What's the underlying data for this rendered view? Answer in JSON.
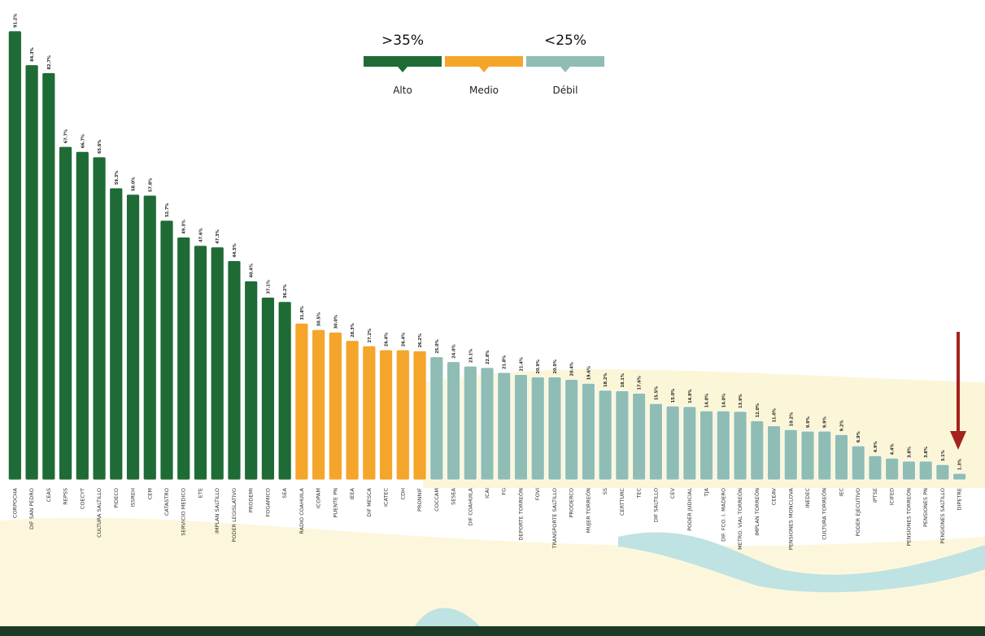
{
  "chart_data": {
    "type": "bar",
    "categories": [
      "CORPOCHA",
      "DIF SAN PEDRO",
      "CEAS",
      "REPSS",
      "COECYT",
      "CULTURA SALTILLO",
      "PIDECO",
      "ISSREH",
      "CEM",
      "CATASTRO",
      "SERVICIO MEDICO",
      "ETE",
      "IMPLAN SALTILLO",
      "PODER LEGISLATIVO",
      "PRODEMI",
      "FOGAMICO",
      "SEA",
      "RADIO COAHUILA",
      "ICOPAM",
      "PUENTE PN",
      "IEEA",
      "DIF MESCA",
      "ICATEC",
      "CDH",
      "PRONNIF",
      "COCCAM",
      "SESEA",
      "DIF COAHUILA",
      "ICAI",
      "FG",
      "DEPORTE TORREÓN",
      "FOVI",
      "TRANSPORTE SALTILLO",
      "PRODERCO",
      "MUJER TORREÓN",
      "SS",
      "CERTTURC",
      "TEC",
      "DIF SALTILLO",
      "CEV",
      "PODER JUDICIAL",
      "TJA",
      "DIF. FCO. I. MADERO",
      "METRO. VIAL TORREÓN",
      "IMPLAN TORREÓN",
      "CEEAV",
      "PENSIONES MONCLOVA",
      "INEDEC",
      "CULTURA TORREÓN",
      "IEC",
      "PODER EJECUTIVO",
      "IPTSE",
      "ICIFED",
      "PENSIONES TORREÓN",
      "PENSIONES PN",
      "PENSIONES SALTILLO",
      "DIPETRE"
    ],
    "values": [
      91.2,
      84.3,
      82.7,
      67.7,
      66.7,
      65.6,
      59.3,
      58.0,
      57.8,
      52.7,
      49.3,
      47.6,
      47.3,
      44.5,
      40.4,
      37.1,
      36.2,
      31.8,
      30.5,
      30.0,
      28.3,
      27.2,
      26.4,
      26.4,
      26.2,
      25.0,
      24.0,
      23.1,
      22.8,
      21.8,
      21.4,
      20.9,
      20.9,
      20.4,
      19.6,
      18.2,
      18.1,
      17.6,
      15.5,
      15.0,
      14.9,
      14.0,
      14.0,
      13.9,
      12.0,
      11.0,
      10.2,
      9.9,
      9.9,
      9.2,
      6.9,
      4.9,
      4.4,
      3.8,
      3.8,
      3.1,
      1.3
    ],
    "value_labels": [
      "91.2%",
      "84.3%",
      "82.7%",
      "67.7%",
      "66.7%",
      "65.6%",
      "59.3%",
      "58.0%",
      "57.8%",
      "52.7%",
      "49.3%",
      "47.6%",
      "47.3%",
      "44.5%",
      "40.4%",
      "37.1%",
      "36.2%",
      "31.8%",
      "30.5%",
      "30.0%",
      "28.3%",
      "27.2%",
      "26.4%",
      "26.4%",
      "26.2%",
      "25.0%",
      "24.0%",
      "23.1%",
      "22.8%",
      "21.8%",
      "21.4%",
      "20.9%",
      "20.9%",
      "20.4%",
      "19.6%",
      "18.2%",
      "18.1%",
      "17.6%",
      "15.5%",
      "15.0%",
      "14.9%",
      "14.0%",
      "14.0%",
      "13.9%",
      "12.0%",
      "11.0%",
      "10.2%",
      "9.9%",
      "9.9%",
      "9.2%",
      "6.9%",
      "4.9%",
      "4.4%",
      "3.8%",
      "3.8%",
      "3.1%",
      "1.3%"
    ],
    "colors": [
      "#1f6b35",
      "#1f6b35",
      "#1f6b35",
      "#1f6b35",
      "#1f6b35",
      "#1f6b35",
      "#1f6b35",
      "#1f6b35",
      "#1f6b35",
      "#1f6b35",
      "#1f6b35",
      "#1f6b35",
      "#1f6b35",
      "#1f6b35",
      "#1f6b35",
      "#1f6b35",
      "#1f6b35",
      "#f5a52a",
      "#f5a52a",
      "#f5a52a",
      "#f5a52a",
      "#f5a52a",
      "#f5a52a",
      "#f5a52a",
      "#f5a52a",
      "#8fbdb5",
      "#8fbdb5",
      "#8fbdb5",
      "#8fbdb5",
      "#8fbdb5",
      "#8fbdb5",
      "#8fbdb5",
      "#8fbdb5",
      "#8fbdb5",
      "#8fbdb5",
      "#8fbdb5",
      "#8fbdb5",
      "#8fbdb5",
      "#8fbdb5",
      "#8fbdb5",
      "#8fbdb5",
      "#8fbdb5",
      "#8fbdb5",
      "#8fbdb5",
      "#8fbdb5",
      "#8fbdb5",
      "#8fbdb5",
      "#8fbdb5",
      "#8fbdb5",
      "#8fbdb5",
      "#8fbdb5",
      "#8fbdb5",
      "#8fbdb5",
      "#8fbdb5",
      "#8fbdb5",
      "#8fbdb5",
      "#8fbdb5"
    ],
    "legend": [
      {
        "threshold": ">35%",
        "label": "Alto",
        "color": "#1f6b35"
      },
      {
        "label": "Medio",
        "color": "#f5a52a"
      },
      {
        "threshold": "<25%",
        "label": "Débil",
        "color": "#8fbdb5"
      }
    ]
  }
}
